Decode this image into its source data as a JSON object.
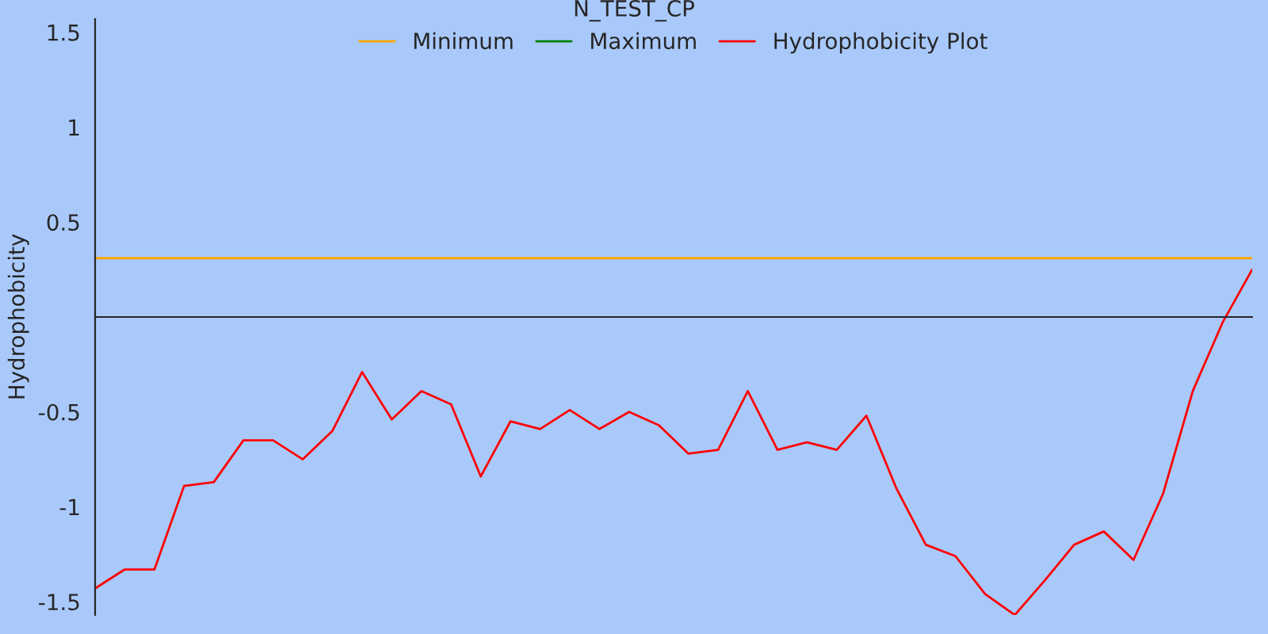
{
  "chart_data": {
    "type": "line",
    "title": "N_TEST_CP",
    "ylabel": "Hydrophobicity",
    "categories": [
      null,
      null,
      null,
      null,
      null,
      null,
      null,
      null,
      null,
      null,
      null,
      null,
      null,
      null,
      null,
      null,
      null,
      null,
      null,
      null,
      null,
      null,
      null,
      null,
      null,
      null,
      null,
      null,
      null,
      null,
      null,
      null,
      null,
      null,
      null,
      null,
      null,
      null,
      null,
      null
    ],
    "series": [
      {
        "name": "Minimum",
        "color": "#ffa500",
        "values": [
          0.31,
          0.31,
          0.31,
          0.31,
          0.31,
          0.31,
          0.31,
          0.31,
          0.31,
          0.31,
          0.31,
          0.31,
          0.31,
          0.31,
          0.31,
          0.31,
          0.31,
          0.31,
          0.31,
          0.31,
          0.31,
          0.31,
          0.31,
          0.31,
          0.31,
          0.31,
          0.31,
          0.31,
          0.31,
          0.31,
          0.31,
          0.31,
          0.31,
          0.31,
          0.31,
          0.31,
          0.31,
          0.31,
          0.31,
          0.31
        ]
      },
      {
        "name": "Maximum",
        "color": "#008000",
        "values": [
          null,
          null,
          null,
          null,
          null,
          null,
          null,
          null,
          null,
          null,
          null,
          null,
          null,
          null,
          null,
          null,
          null,
          null,
          null,
          null,
          null,
          null,
          null,
          null,
          null,
          null,
          null,
          null,
          null,
          null,
          null,
          null,
          null,
          null,
          null,
          null,
          null,
          null,
          null,
          null
        ]
      },
      {
        "name": "Hydrophobicity Plot",
        "color": "#ff0000",
        "values": [
          -1.43,
          -1.33,
          -1.33,
          -0.89,
          -0.87,
          -0.65,
          -0.65,
          -0.75,
          -0.6,
          -0.29,
          -0.54,
          -0.39,
          -0.46,
          -0.84,
          -0.55,
          -0.59,
          -0.49,
          -0.59,
          -0.5,
          -0.57,
          -0.72,
          -0.7,
          -0.39,
          -0.7,
          -0.66,
          -0.7,
          -0.52,
          -0.9,
          -1.2,
          -1.26,
          -1.46,
          -1.57,
          -1.39,
          -1.2,
          -1.13,
          -1.28,
          -0.93,
          -0.39,
          -0.03,
          0.25
        ]
      }
    ],
    "ylim": [
      -1.57,
      1.57
    ],
    "yticks": [
      -1.5,
      -1,
      -0.5,
      0.5,
      1,
      1.5
    ],
    "legend": "top",
    "grid": false,
    "marker": "none",
    "line_style": "solid"
  }
}
